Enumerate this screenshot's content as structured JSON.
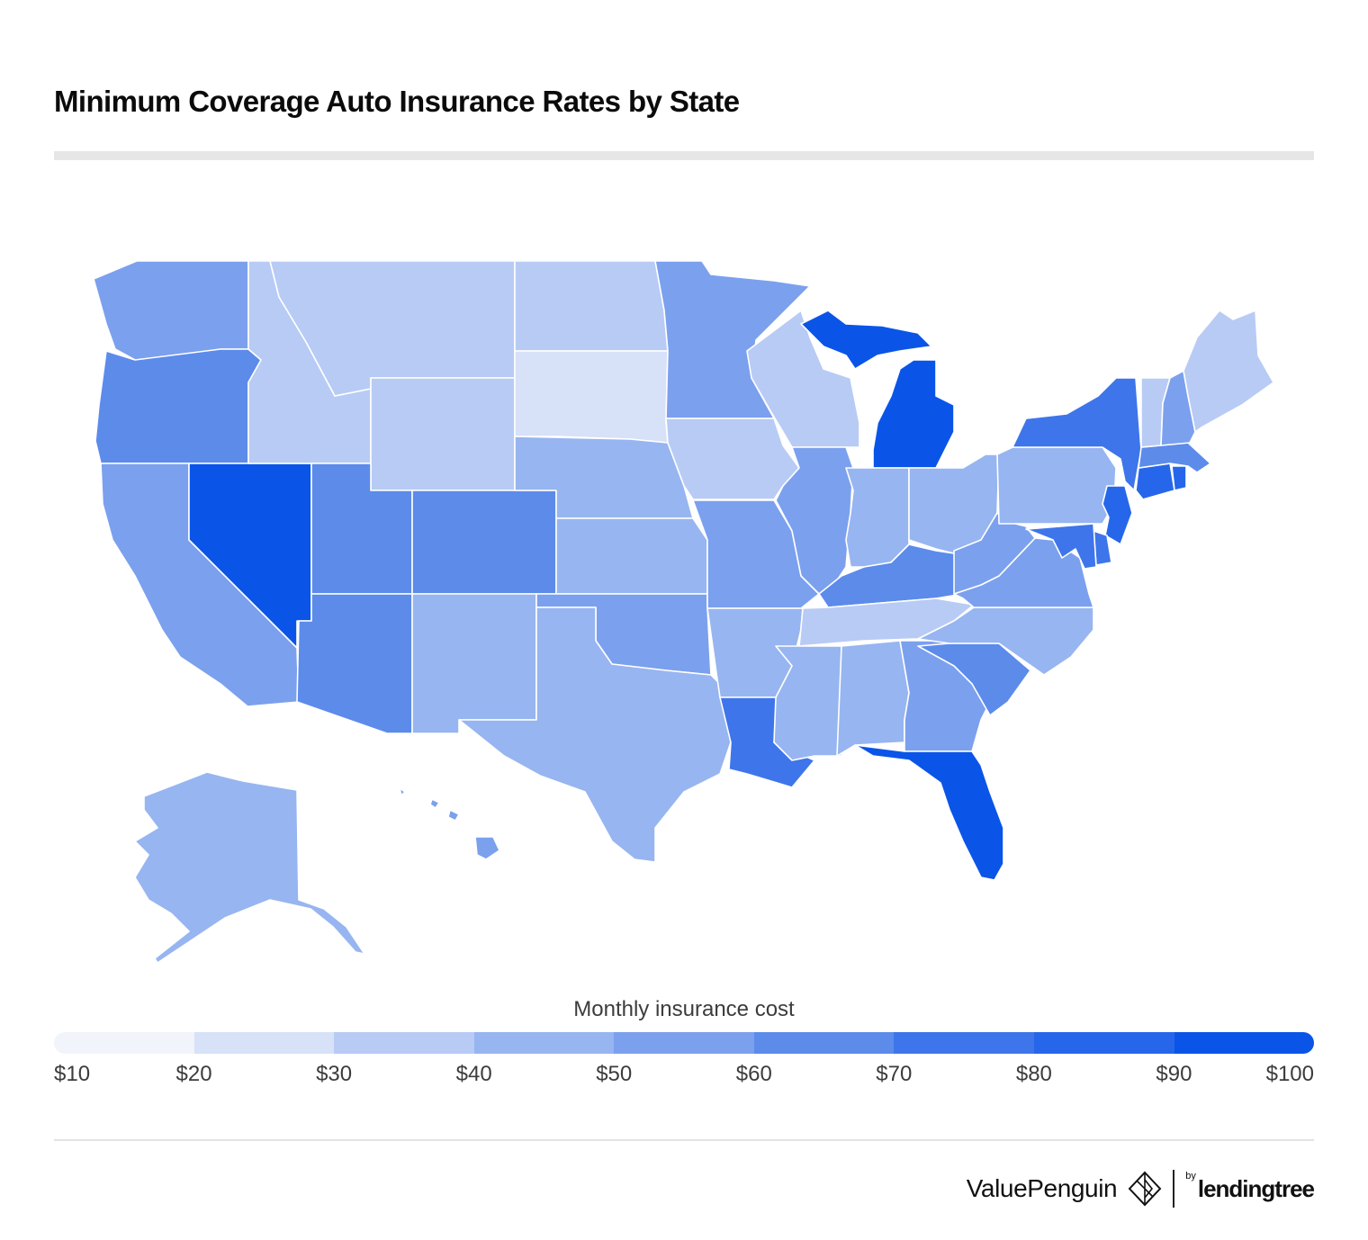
{
  "header": {
    "title": "Minimum Coverage Auto Insurance Rates by State"
  },
  "legend": {
    "title": "Monthly insurance cost",
    "ticks": [
      "$10",
      "$20",
      "$30",
      "$40",
      "$50",
      "$60",
      "$70",
      "$80",
      "$90",
      "$100"
    ],
    "bins": [
      "#f2f4fb",
      "#d7e1f8",
      "#b8cbf5",
      "#97b5f0",
      "#7ba0ee",
      "#5c8bea",
      "#3e75ea",
      "#2666ea",
      "#0a55e8"
    ]
  },
  "brand": {
    "valuepenguin": "ValuePenguin",
    "by": "by",
    "lendingtree": "lendingtree",
    "icon": "penguin-diamond-icon"
  },
  "chart_data": {
    "type": "choropleth",
    "title": "Minimum Coverage Auto Insurance Rates by State",
    "legend_title": "Monthly insurance cost",
    "scale_min": 10,
    "scale_max": 100,
    "bin_edges": [
      10,
      20,
      30,
      40,
      50,
      60,
      70,
      80,
      90,
      100
    ],
    "states": {
      "WA": 55,
      "OR": 68,
      "CA": 55,
      "NV": 95,
      "ID": 35,
      "MT": 35,
      "WY": 35,
      "UT": 62,
      "CO": 62,
      "AZ": 62,
      "NM": 45,
      "ND": 35,
      "SD": 25,
      "NE": 45,
      "KS": 45,
      "OK": 55,
      "TX": 45,
      "MN": 55,
      "IA": 35,
      "MO": 55,
      "AR": 45,
      "LA": 72,
      "WI": 35,
      "IL": 55,
      "MI": 95,
      "IN": 45,
      "OH": 45,
      "KY": 68,
      "TN": 35,
      "MS": 45,
      "AL": 45,
      "GA": 55,
      "FL": 95,
      "SC": 62,
      "NC": 45,
      "VA": 55,
      "WV": 55,
      "PA": 45,
      "NY": 72,
      "VT": 35,
      "NH": 55,
      "ME": 35,
      "MA": 68,
      "RI": 85,
      "CT": 85,
      "NJ": 85,
      "DE": 72,
      "MD": 72,
      "AK": 45,
      "HI": 55
    }
  }
}
